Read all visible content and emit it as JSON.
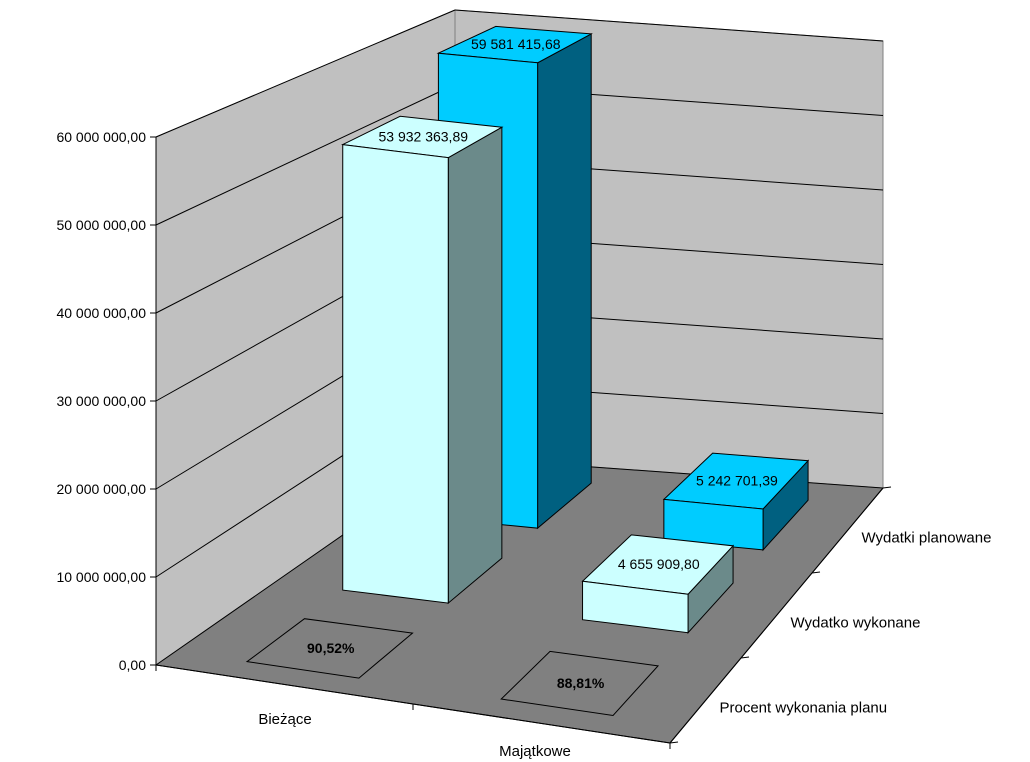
{
  "chart_data": {
    "type": "bar",
    "categories": [
      "Bieżące",
      "Majątkowe"
    ],
    "series": [
      {
        "name": "Wydatki planowane",
        "values": [
          59581415.68,
          5242701.39
        ],
        "labels": [
          "59 581 415,68",
          "5 242 701,39"
        ]
      },
      {
        "name": "Wydatko wykonane",
        "values": [
          53932363.89,
          4655909.8
        ],
        "labels": [
          "53 932 363,89",
          "4 655 909,80"
        ]
      },
      {
        "name": "Procent wykonania planu",
        "values": [
          0.9052,
          0.8881
        ],
        "labels": [
          "90,52%",
          "88,81%"
        ]
      }
    ],
    "y_ticks": [
      "0,00",
      "10 000 000,00",
      "20 000 000,00",
      "30 000 000,00",
      "40 000 000,00",
      "50 000 000,00",
      "60 000 000,00"
    ],
    "ylim": [
      0,
      60000000
    ],
    "grid": true,
    "colors": {
      "Wydatki planowane": "#00ccff",
      "Wydatko wykonane": "#ccffff",
      "wall": "#c0c0c0",
      "floor": "#808080"
    }
  }
}
